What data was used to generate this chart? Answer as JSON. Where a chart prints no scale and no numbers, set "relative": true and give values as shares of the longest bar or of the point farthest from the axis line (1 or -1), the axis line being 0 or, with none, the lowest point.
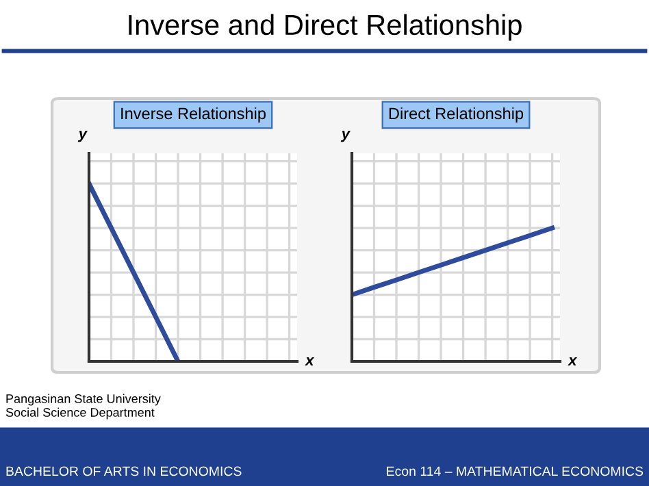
{
  "chart_data": [
    {
      "type": "line",
      "title": "Inverse Relationship",
      "xlabel": "x",
      "ylabel": "y",
      "relative": true,
      "grid": true,
      "categories": [
        null,
        null,
        null,
        null,
        null,
        null,
        null,
        null,
        null,
        null
      ],
      "series": [
        {
          "color": "#2f4b9c",
          "values": [
            1,
            0.75,
            0.5,
            0.25,
            0,
            null,
            null,
            null,
            null,
            null
          ]
        }
      ],
      "annotations": [
        "Inverse and Direct Relationship",
        "Pangasinan State University",
        "Social Science Department",
        "BACHELOR OF ARTS IN ECONOMICS",
        "Econ 114 – MATHEMATICAL ECONOMICS"
      ]
    },
    {
      "type": "line",
      "title": "Direct Relationship",
      "xlabel": "x",
      "ylabel": "y",
      "relative": true,
      "grid": true,
      "categories": [
        null,
        null,
        null,
        null,
        null,
        null,
        null,
        null,
        null,
        null
      ],
      "series": [
        {
          "color": "#2f4b9c",
          "values": [
            0.5,
            0.556,
            0.611,
            0.667,
            0.722,
            0.778,
            0.833,
            0.889,
            0.944,
            1
          ]
        }
      ]
    }
  ]
}
